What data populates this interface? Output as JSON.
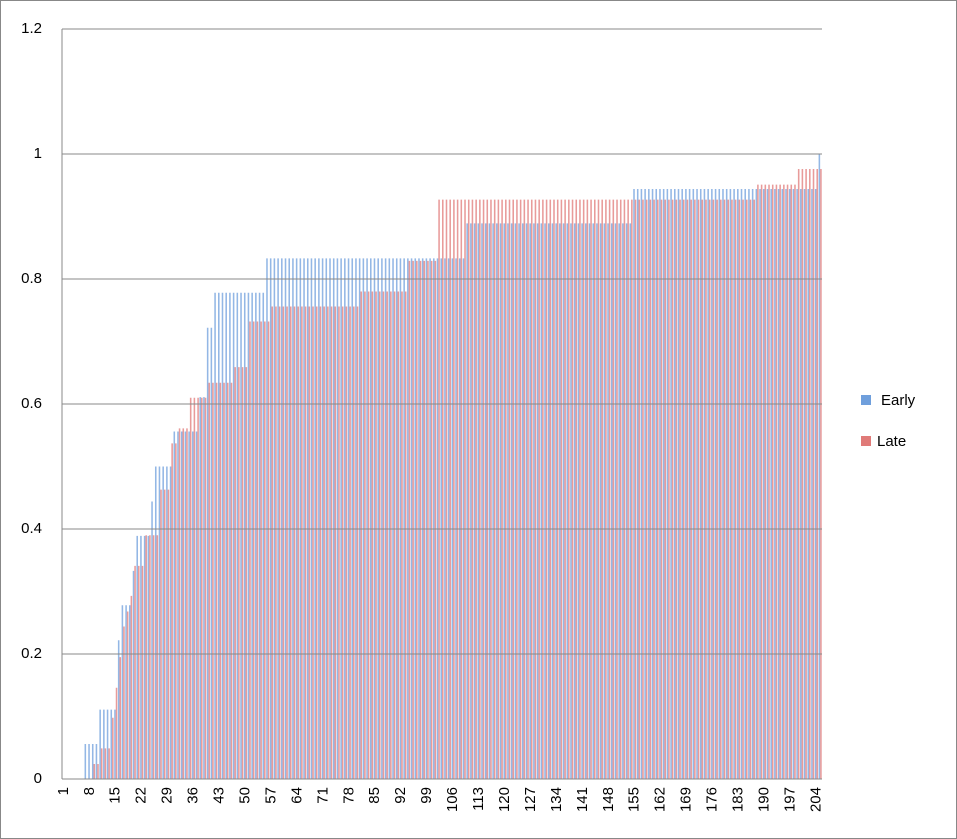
{
  "chart_data": {
    "type": "bar",
    "categories": [
      "1",
      null,
      null,
      null,
      null,
      null,
      null,
      "8",
      null,
      null,
      null,
      null,
      null,
      null,
      "15",
      null,
      null,
      null,
      null,
      null,
      null,
      "22",
      null,
      null,
      null,
      null,
      null,
      null,
      "29",
      null,
      null,
      null,
      null,
      null,
      null,
      "36",
      null,
      null,
      null,
      null,
      null,
      null,
      "43",
      null,
      null,
      null,
      null,
      null,
      null,
      "50",
      null,
      null,
      null,
      null,
      null,
      null,
      "57",
      null,
      null,
      null,
      null,
      null,
      null,
      "64",
      null,
      null,
      null,
      null,
      null,
      null,
      "71",
      null,
      null,
      null,
      null,
      null,
      null,
      "78",
      null,
      null,
      null,
      null,
      null,
      null,
      "85",
      null,
      null,
      null,
      null,
      null,
      null,
      "92",
      null,
      null,
      null,
      null,
      null,
      null,
      "99",
      null,
      null,
      null,
      null,
      null,
      null,
      "106",
      null,
      null,
      null,
      null,
      null,
      null,
      "113",
      null,
      null,
      null,
      null,
      null,
      null,
      "120",
      null,
      null,
      null,
      null,
      null,
      null,
      "127",
      null,
      null,
      null,
      null,
      null,
      null,
      "134",
      null,
      null,
      null,
      null,
      null,
      null,
      "141",
      null,
      null,
      null,
      null,
      null,
      null,
      "148",
      null,
      null,
      null,
      null,
      null,
      null,
      "155",
      null,
      null,
      null,
      null,
      null,
      null,
      "162",
      null,
      null,
      null,
      null,
      null,
      null,
      "169",
      null,
      null,
      null,
      null,
      null,
      null,
      "176",
      null,
      null,
      null,
      null,
      null,
      null,
      "183",
      null,
      null,
      null,
      null,
      null,
      null,
      "190",
      null,
      null,
      null,
      null,
      null,
      null,
      "197",
      null,
      null,
      null,
      null,
      null,
      null,
      "204",
      null
    ],
    "series": [
      {
        "name": "Early",
        "color": "#6f9fdc",
        "values": [
          0,
          0,
          0,
          0,
          0,
          0,
          0.056,
          0.056,
          0.056,
          0.056,
          0.111,
          0.111,
          0.111,
          0.111,
          0.111,
          0.222,
          0.278,
          0.278,
          0.278,
          0.333,
          0.389,
          0.389,
          0.389,
          0.389,
          0.444,
          0.5,
          0.5,
          0.5,
          0.5,
          0.5,
          0.556,
          0.556,
          0.556,
          0.556,
          0.556,
          0.556,
          0.556,
          0.611,
          0.611,
          0.722,
          0.722,
          0.778,
          0.778,
          0.778,
          0.778,
          0.778,
          0.778,
          0.778,
          0.778,
          0.778,
          0.778,
          0.778,
          0.778,
          0.778,
          0.778,
          0.833,
          0.833,
          0.833,
          0.833,
          0.833,
          0.833,
          0.833,
          0.833,
          0.833,
          0.833,
          0.833,
          0.833,
          0.833,
          0.833,
          0.833,
          0.833,
          0.833,
          0.833,
          0.833,
          0.833,
          0.833,
          0.833,
          0.833,
          0.833,
          0.833,
          0.833,
          0.833,
          0.833,
          0.833,
          0.833,
          0.833,
          0.833,
          0.833,
          0.833,
          0.833,
          0.833,
          0.833,
          0.833,
          0.833,
          0.833,
          0.833,
          0.833,
          0.833,
          0.833,
          0.833,
          0.833,
          0.833,
          0.833,
          0.833,
          0.833,
          0.833,
          0.833,
          0.833,
          0.833,
          0.889,
          0.889,
          0.889,
          0.889,
          0.889,
          0.889,
          0.889,
          0.889,
          0.889,
          0.889,
          0.889,
          0.889,
          0.889,
          0.889,
          0.889,
          0.889,
          0.889,
          0.889,
          0.889,
          0.889,
          0.889,
          0.889,
          0.889,
          0.889,
          0.889,
          0.889,
          0.889,
          0.889,
          0.889,
          0.889,
          0.889,
          0.889,
          0.889,
          0.889,
          0.889,
          0.889,
          0.889,
          0.889,
          0.889,
          0.889,
          0.889,
          0.889,
          0.889,
          0.889,
          0.889,
          0.944,
          0.944,
          0.944,
          0.944,
          0.944,
          0.944,
          0.944,
          0.944,
          0.944,
          0.944,
          0.944,
          0.944,
          0.944,
          0.944,
          0.944,
          0.944,
          0.944,
          0.944,
          0.944,
          0.944,
          0.944,
          0.944,
          0.944,
          0.944,
          0.944,
          0.944,
          0.944,
          0.944,
          0.944,
          0.944,
          0.944,
          0.944,
          0.944,
          0.944,
          0.944,
          0.944,
          0.944,
          0.944,
          0.944,
          0.944,
          0.944,
          0.944,
          0.944,
          0.944,
          0.944,
          0.944,
          0.944,
          0.944,
          0.944,
          0.944,
          1
        ]
      },
      {
        "name": "Late",
        "color": "#e07a78",
        "values": [
          0,
          0,
          0,
          0,
          0,
          0,
          0,
          0,
          0.024,
          0.024,
          0.049,
          0.049,
          0.049,
          0.098,
          0.146,
          0.195,
          0.244,
          0.268,
          0.293,
          0.341,
          0.341,
          0.341,
          0.39,
          0.39,
          0.39,
          0.39,
          0.463,
          0.463,
          0.463,
          0.537,
          0.537,
          0.561,
          0.561,
          0.561,
          0.61,
          0.61,
          0.61,
          0.61,
          0.61,
          0.634,
          0.634,
          0.634,
          0.634,
          0.634,
          0.634,
          0.634,
          0.659,
          0.659,
          0.659,
          0.659,
          0.732,
          0.732,
          0.732,
          0.732,
          0.732,
          0.732,
          0.756,
          0.756,
          0.756,
          0.756,
          0.756,
          0.756,
          0.756,
          0.756,
          0.756,
          0.756,
          0.756,
          0.756,
          0.756,
          0.756,
          0.756,
          0.756,
          0.756,
          0.756,
          0.756,
          0.756,
          0.756,
          0.756,
          0.756,
          0.756,
          0.78,
          0.78,
          0.78,
          0.78,
          0.78,
          0.78,
          0.78,
          0.78,
          0.78,
          0.78,
          0.78,
          0.78,
          0.78,
          0.829,
          0.829,
          0.829,
          0.829,
          0.829,
          0.829,
          0.829,
          0.829,
          0.927,
          0.927,
          0.927,
          0.927,
          0.927,
          0.927,
          0.927,
          0.927,
          0.927,
          0.927,
          0.927,
          0.927,
          0.927,
          0.927,
          0.927,
          0.927,
          0.927,
          0.927,
          0.927,
          0.927,
          0.927,
          0.927,
          0.927,
          0.927,
          0.927,
          0.927,
          0.927,
          0.927,
          0.927,
          0.927,
          0.927,
          0.927,
          0.927,
          0.927,
          0.927,
          0.927,
          0.927,
          0.927,
          0.927,
          0.927,
          0.927,
          0.927,
          0.927,
          0.927,
          0.927,
          0.927,
          0.927,
          0.927,
          0.927,
          0.927,
          0.927,
          0.927,
          0.927,
          0.927,
          0.927,
          0.927,
          0.927,
          0.927,
          0.927,
          0.927,
          0.927,
          0.927,
          0.927,
          0.927,
          0.927,
          0.927,
          0.927,
          0.927,
          0.927,
          0.927,
          0.927,
          0.927,
          0.927,
          0.927,
          0.927,
          0.927,
          0.927,
          0.927,
          0.927,
          0.927,
          0.927,
          0.927,
          0.927,
          0.927,
          0.927,
          0.927,
          0.951,
          0.951,
          0.951,
          0.951,
          0.951,
          0.951,
          0.951,
          0.951,
          0.951,
          0.951,
          0.951,
          0.976,
          0.976,
          0.976,
          0.976,
          0.976,
          0.976,
          0.976
        ]
      }
    ],
    "ylim": [
      0,
      1.2
    ],
    "yticks": [
      0,
      0.2,
      0.4,
      0.6,
      0.8,
      1,
      1.2
    ],
    "grid": true,
    "legend": "right"
  }
}
